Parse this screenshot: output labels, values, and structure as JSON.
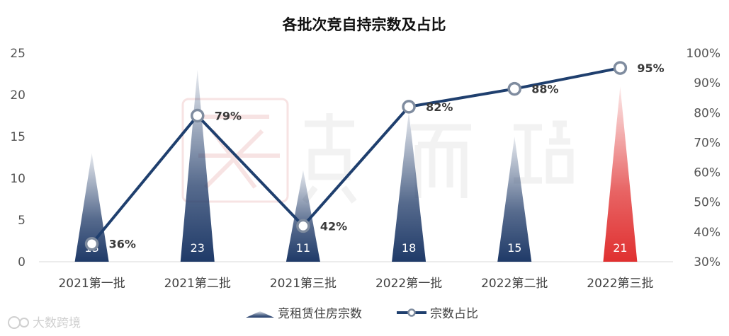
{
  "source_watermark": "大数跨境",
  "chart_data": {
    "type": "bar+line",
    "title": "各批次竞自持宗数及占比",
    "categories": [
      "2021第一批",
      "2021第二批",
      "2021第三批",
      "2022第一批",
      "2022第二批",
      "2022第三批"
    ],
    "bar_series": {
      "name": "竞租赁住房宗数",
      "values": [
        13,
        23,
        11,
        18,
        15,
        21
      ],
      "value_labels": [
        "13",
        "23",
        "11",
        "18",
        "15",
        "21"
      ],
      "color": "#1f3a68",
      "highlight_color": "#e03030",
      "highlight_index": 5
    },
    "line_series": {
      "name": "宗数占比",
      "values": [
        36,
        79,
        42,
        82,
        88,
        95
      ],
      "labels": [
        "36%",
        "79%",
        "42%",
        "82%",
        "88%",
        "95%"
      ],
      "color": "#1f3f6e"
    },
    "y_left": {
      "min": 0,
      "max": 25,
      "ticks": [
        "0",
        "5",
        "10",
        "15",
        "20",
        "25"
      ]
    },
    "y_right": {
      "min": 30,
      "max": 100,
      "ticks": [
        "30%",
        "40%",
        "50%",
        "60%",
        "70%",
        "80%",
        "90%",
        "100%"
      ]
    },
    "grid": false,
    "legend_position": "bottom"
  }
}
